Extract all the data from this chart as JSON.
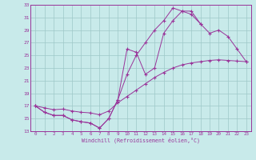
{
  "xlabel": "Windchill (Refroidissement éolien,°C)",
  "bg_color": "#c8eaea",
  "grid_color": "#9ec8c8",
  "line_color": "#993399",
  "xlim": [
    -0.5,
    23.5
  ],
  "ylim": [
    13,
    33
  ],
  "yticks": [
    13,
    15,
    17,
    19,
    21,
    23,
    25,
    27,
    29,
    31,
    33
  ],
  "xticks": [
    0,
    1,
    2,
    3,
    4,
    5,
    6,
    7,
    8,
    9,
    10,
    11,
    12,
    13,
    14,
    15,
    16,
    17,
    18,
    19,
    20,
    21,
    22,
    23
  ],
  "line1_x": [
    0,
    1,
    2,
    3,
    4,
    5,
    6,
    7,
    8,
    9,
    10,
    11,
    12,
    13,
    14,
    15,
    16,
    17,
    18,
    19,
    20,
    21,
    22,
    23
  ],
  "line1_y": [
    17,
    16,
    15.5,
    15.5,
    14.8,
    14.5,
    14.3,
    13.5,
    15,
    18,
    22,
    25,
    27,
    29,
    30.5,
    32.5,
    32,
    32,
    30,
    28.5,
    29,
    28,
    26,
    24
  ],
  "line2_x": [
    0,
    1,
    2,
    3,
    4,
    5,
    6,
    7,
    8,
    9,
    10,
    11,
    12,
    13,
    14,
    15,
    16,
    17,
    18
  ],
  "line2_y": [
    17,
    16,
    15.5,
    15.5,
    14.8,
    14.5,
    14.3,
    13.5,
    15,
    18,
    26,
    25.5,
    22,
    23,
    28.5,
    30.5,
    32,
    31.5,
    30
  ],
  "line3_x": [
    0,
    1,
    2,
    3,
    4,
    5,
    6,
    7,
    8,
    9,
    10,
    11,
    12,
    13,
    14,
    15,
    16,
    17,
    18,
    19,
    20,
    21,
    22,
    23
  ],
  "line3_y": [
    17,
    16.7,
    16.4,
    16.5,
    16.2,
    16.0,
    15.9,
    15.6,
    16.2,
    17.5,
    18.5,
    19.5,
    20.5,
    21.5,
    22.3,
    23.0,
    23.5,
    23.8,
    24.0,
    24.2,
    24.3,
    24.2,
    24.1,
    24.0
  ]
}
